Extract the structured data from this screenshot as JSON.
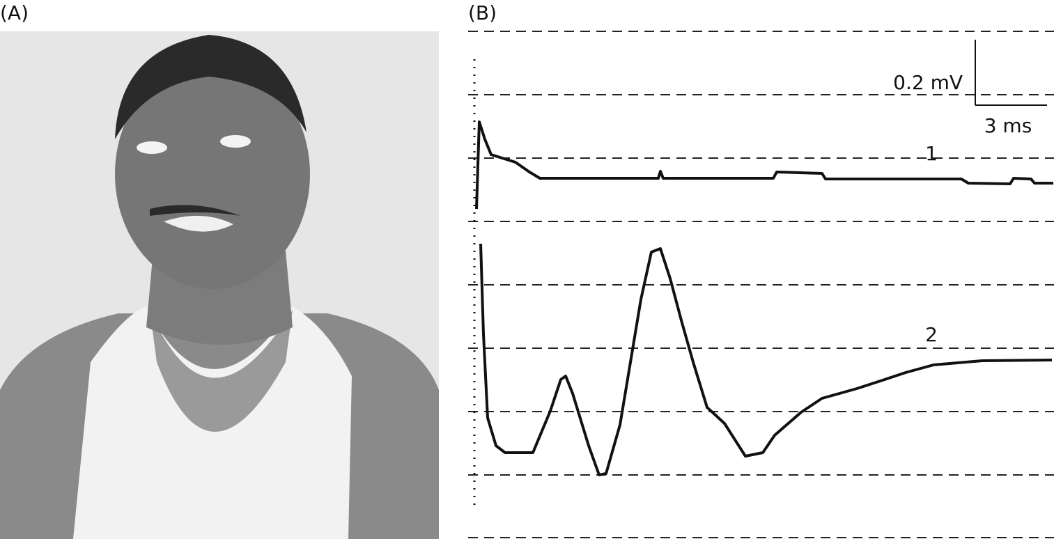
{
  "panels": [
    {
      "label": "(A)"
    },
    {
      "label": "(B)",
      "scale_bar": {
        "voltage": "0.2 mV",
        "time": "3 ms"
      },
      "trace_labels": [
        "1",
        "2"
      ]
    }
  ]
}
